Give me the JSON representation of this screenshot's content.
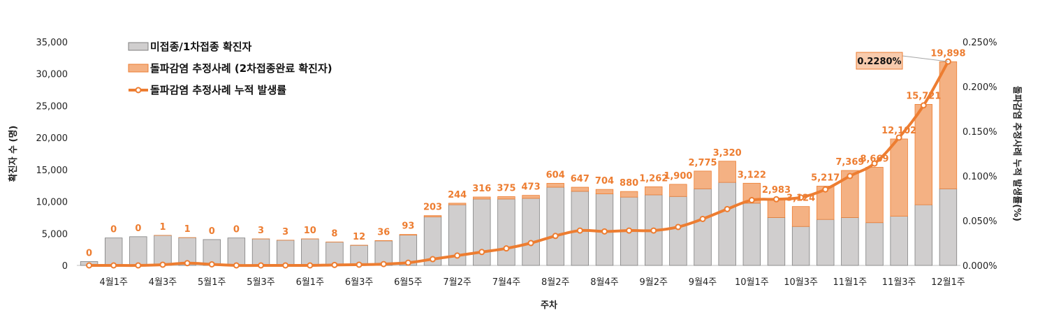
{
  "chart_data": {
    "type": "bar",
    "xlabel": "주차",
    "ylabel": "확진자 수 (명)",
    "y2label": "돌파감염 추정사례 누적 발생률(%)",
    "ylim": [
      0,
      35000
    ],
    "y2lim": [
      0,
      0.25
    ],
    "yticks": [
      "0",
      "5,000",
      "10,000",
      "15,000",
      "20,000",
      "25,000",
      "30,000",
      "35,000"
    ],
    "y2ticks": [
      "0.000%",
      "0.050%",
      "0.100%",
      "0.150%",
      "0.200%",
      "0.250%"
    ],
    "categories": [
      "",
      "4월1주",
      "",
      "4월3주",
      "",
      "5월1주",
      "",
      "5월3주",
      "",
      "6월1주",
      "",
      "6월3주",
      "",
      "6월5주",
      "",
      "7월2주",
      "",
      "7월4주",
      "",
      "8월2주",
      "",
      "8월4주",
      "",
      "9월2주",
      "",
      "9월4주",
      "",
      "10월1주",
      "",
      "10월3주",
      "",
      "11월1주",
      "",
      "11월3주",
      "",
      "12월1주"
    ],
    "legend_position": "top-left",
    "series": [
      {
        "name": "미접종/1차접종 확진자",
        "kind": "bar-stacked",
        "color": "#D0CECE",
        "values": [
          600,
          4300,
          4500,
          4700,
          4350,
          4050,
          4300,
          4150,
          3950,
          4150,
          3650,
          3150,
          3850,
          4750,
          7600,
          9500,
          10400,
          10400,
          10500,
          12250,
          11600,
          11200,
          10700,
          11050,
          10800,
          12000,
          13000,
          9750,
          7500,
          6100,
          7200,
          7500,
          6700,
          7700,
          9500,
          12000
        ]
      },
      {
        "name": "돌파감염 추정사례 (2차접종완료 확진자)",
        "kind": "bar-stacked",
        "color": "#F4B183",
        "values": [
          0,
          0,
          0,
          1,
          1,
          0,
          0,
          3,
          3,
          10,
          8,
          12,
          36,
          93,
          203,
          244,
          316,
          375,
          473,
          604,
          647,
          704,
          880,
          1262,
          1900,
          2775,
          3320,
          3122,
          2983,
          3124,
          5217,
          7369,
          8669,
          12102,
          15721,
          19898
        ],
        "labels": [
          "0",
          "0",
          "0",
          "1",
          "1",
          "0",
          "0",
          "3",
          "3",
          "10",
          "8",
          "12",
          "36",
          "93",
          "203",
          "244",
          "316",
          "375",
          "473",
          "604",
          "647",
          "704",
          "880",
          "1,262",
          "1,900",
          "2,775",
          "3,320",
          "3,122",
          "2,983",
          "3,124",
          "5,217",
          "7,369",
          "8,669",
          "12,102",
          "15,721",
          "19,898"
        ]
      },
      {
        "name": "돌파감염 추정사례 누적 발생률",
        "kind": "line",
        "axis": "right",
        "color": "#ED7D31",
        "values": [
          0.0,
          0.0,
          0.0,
          0.0008,
          0.0025,
          0.0012,
          0.0,
          0.0,
          0.0,
          0.0,
          0.0005,
          0.0008,
          0.0015,
          0.003,
          0.007,
          0.011,
          0.015,
          0.019,
          0.025,
          0.033,
          0.039,
          0.038,
          0.039,
          0.039,
          0.043,
          0.052,
          0.063,
          0.073,
          0.074,
          0.076,
          0.085,
          0.1,
          0.114,
          0.143,
          0.179,
          0.228
        ]
      }
    ],
    "annotation": {
      "text": "0.2280%",
      "index": 35
    }
  }
}
